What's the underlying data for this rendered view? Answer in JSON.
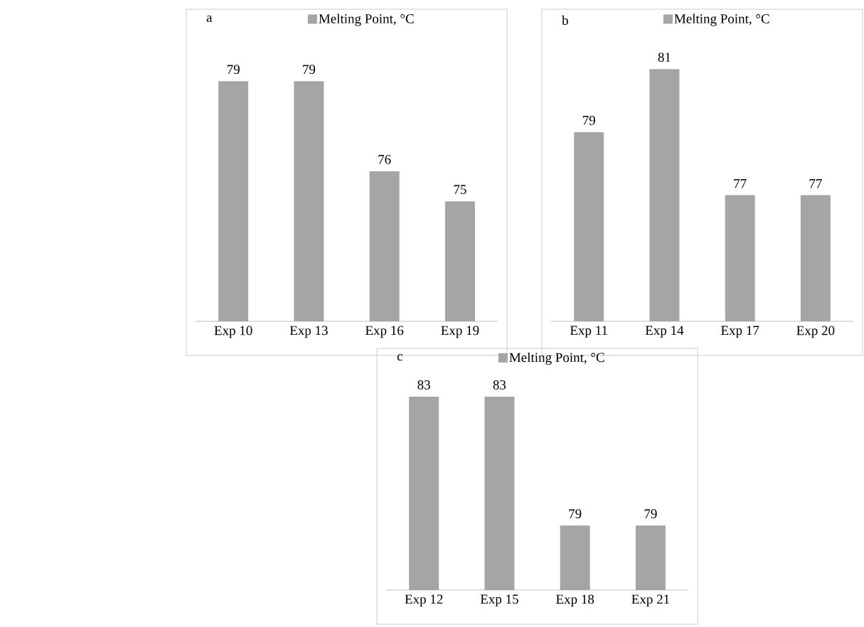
{
  "chart_data": [
    {
      "type": "bar",
      "title": "a",
      "categories": [
        "Exp 10",
        "Exp 13",
        "Exp 16",
        "Exp 19"
      ],
      "series": [
        {
          "name": "Melting Point, °C",
          "color": "#a5a5a5",
          "values": [
            79,
            79,
            76,
            75
          ]
        }
      ],
      "ylim": [
        71,
        81.4
      ],
      "data_labels": true,
      "legend": "top"
    },
    {
      "type": "bar",
      "title": "b",
      "categories": [
        "Exp 11",
        "Exp 14",
        "Exp 17",
        "Exp 20"
      ],
      "series": [
        {
          "name": "Melting Point, °C",
          "color": "#a5a5a5",
          "values": [
            79,
            81,
            77,
            77
          ]
        }
      ],
      "ylim": [
        73,
        82.9
      ],
      "data_labels": true,
      "legend": "top"
    },
    {
      "type": "bar",
      "title": "c",
      "categories": [
        "Exp 12",
        "Exp 15",
        "Exp 18",
        "Exp 21"
      ],
      "series": [
        {
          "name": "Melting Point, °C",
          "color": "#a5a5a5",
          "values": [
            83,
            83,
            79,
            79
          ]
        }
      ],
      "ylim": [
        77,
        84.5
      ],
      "data_labels": true,
      "legend": "top"
    }
  ]
}
